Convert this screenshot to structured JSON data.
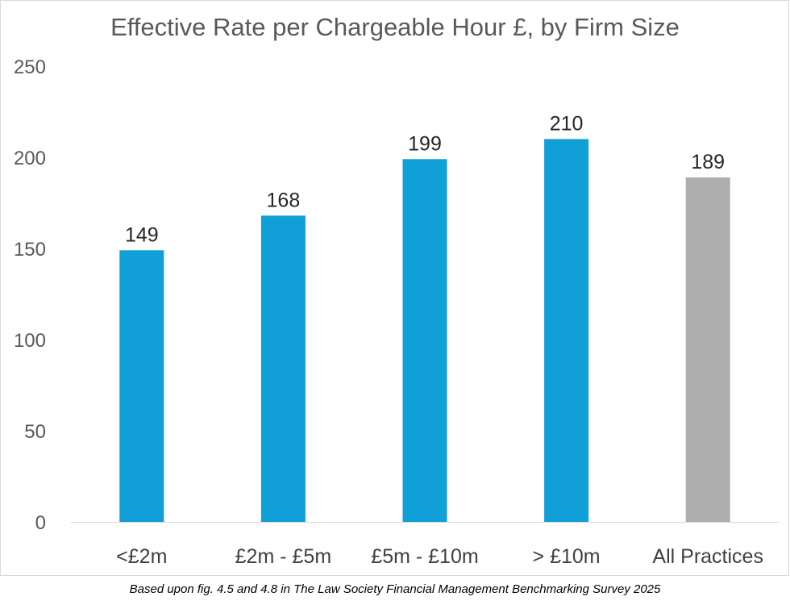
{
  "chart_data": {
    "type": "bar",
    "title": "Effective Rate per Chargeable Hour £, by Firm Size",
    "categories": [
      "<£2m",
      "£2m - £5m",
      "£5m - £10m",
      "> £10m",
      "All Practices"
    ],
    "values": [
      149,
      168,
      199,
      210,
      189
    ],
    "bar_colors": [
      "#119fd7",
      "#119fd7",
      "#119fd7",
      "#119fd7",
      "#aeaeae"
    ],
    "ylim": [
      0,
      250
    ],
    "yticks": [
      0,
      50,
      100,
      150,
      200,
      250
    ],
    "xlabel": "",
    "ylabel": "",
    "grid": false,
    "legend": "none"
  },
  "footnote": "Based upon fig. 4.5 and 4.8 in The Law Society Financial Management Benchmarking Survey 2025"
}
